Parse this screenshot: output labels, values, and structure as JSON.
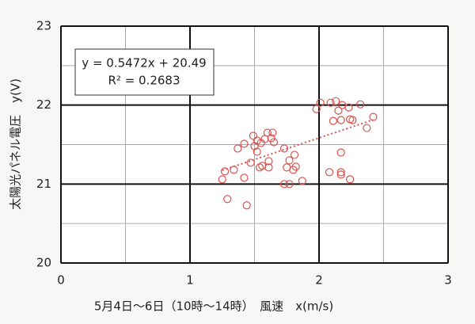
{
  "chart_data": {
    "type": "scatter",
    "x_label": "5月4日～6日（10時～14時）　風速　x(m/s)",
    "y_label": "太陽光パネル電圧　y(V)",
    "annotations": [
      "y = 0.5472x + 20.49",
      "R² = 0.2683"
    ],
    "trendline": {
      "slope": 0.5472,
      "intercept": 20.49,
      "color": "#d9534f"
    },
    "xlim": [
      0,
      3
    ],
    "ylim": [
      20,
      23
    ],
    "xticks": [
      0,
      1,
      2,
      3
    ],
    "yticks": [
      20,
      21,
      22,
      23
    ],
    "grid": true,
    "series": [
      {
        "color": "#d9534f",
        "x": [
          1.25,
          1.29,
          1.27,
          1.34,
          1.37,
          1.42,
          1.44,
          1.42,
          1.47,
          1.49,
          1.5,
          1.52,
          1.52,
          1.55,
          1.54,
          1.56,
          1.58,
          1.6,
          1.61,
          1.63,
          1.64,
          1.65,
          1.61,
          1.73,
          1.75,
          1.77,
          1.73,
          1.77,
          1.8,
          1.82,
          1.81,
          1.87,
          1.98,
          2.01,
          2.09,
          2.08,
          2.11,
          2.13,
          2.15,
          2.17,
          2.18,
          2.17,
          2.17,
          2.17,
          2.23,
          2.24,
          2.26,
          2.24,
          2.32,
          2.37,
          2.42
        ],
        "values": [
          21.06,
          20.81,
          21.16,
          21.18,
          21.45,
          21.51,
          20.73,
          21.08,
          21.27,
          21.61,
          21.48,
          21.41,
          21.55,
          21.52,
          21.21,
          21.23,
          21.57,
          21.65,
          21.29,
          21.58,
          21.65,
          21.53,
          21.21,
          21.45,
          21.21,
          21.3,
          21.0,
          21.0,
          21.18,
          21.22,
          21.37,
          21.04,
          21.95,
          22.03,
          22.03,
          21.15,
          21.8,
          22.05,
          21.93,
          21.81,
          22.0,
          21.12,
          21.4,
          21.15,
          21.97,
          21.82,
          21.81,
          21.06,
          22.01,
          21.71,
          21.85
        ]
      }
    ]
  }
}
